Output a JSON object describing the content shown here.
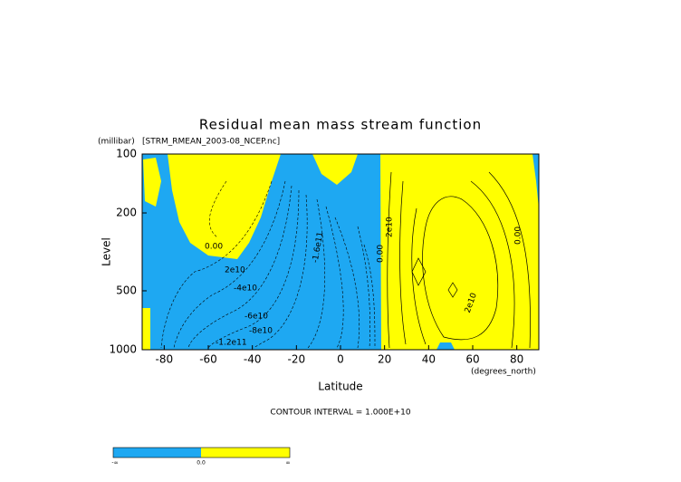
{
  "chart_data": {
    "type": "contour",
    "title": "Residual mean mass stream function",
    "y_units": "(millibar)",
    "source": "[STRM_RMEAN_2003-08_NCEP.nc]",
    "ylabel": "Level",
    "xlabel": "Latitude",
    "x_units": "(degrees_north)",
    "footnote": "CONTOUR INTERVAL = 1.000E+10",
    "xlim": [
      -90,
      90
    ],
    "xticks": [
      -80,
      -60,
      -40,
      -20,
      0,
      20,
      40,
      60,
      80
    ],
    "ylim": [
      1000,
      100
    ],
    "yticks": [
      100,
      200,
      500,
      1000
    ],
    "ylog": true,
    "negative_color": "#1ea8f2",
    "positive_color": "#ffff00",
    "contour_labels": [
      "0.00",
      "2e10",
      "-4e10",
      "-6e10",
      "-8e10",
      "-1.2e11",
      "-1.6e11",
      "0.00",
      "2e10",
      "2e10",
      "0.00"
    ],
    "colorbar_labels": [
      "-∞",
      "0.0",
      "∞"
    ]
  }
}
